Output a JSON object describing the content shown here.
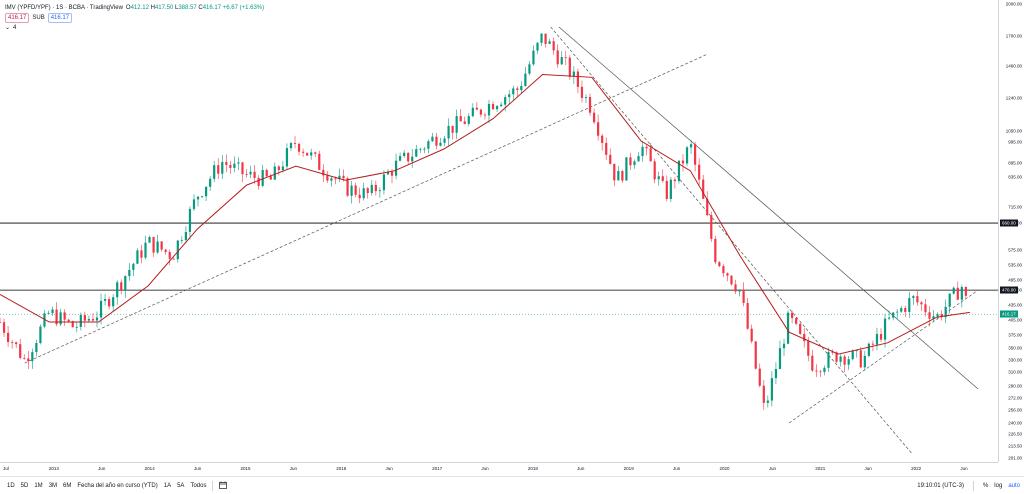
{
  "legend": {
    "symbol": "IMV (YPFD/YPF) · 1S · BCBA · TradingView",
    "ohlc": {
      "o_label": "O",
      "o": "412.12",
      "h_label": "H",
      "h": "417.50",
      "l_label": "L",
      "l": "388.57",
      "c_label": "C",
      "c": "416.17",
      "change": "+6.67 (+1.63%)"
    },
    "ma_value_1": "416.17",
    "ma_label": "SUB",
    "ma_value_2": "416.17",
    "collapse_count": "4"
  },
  "colors": {
    "up": "#089981",
    "down": "#f23645",
    "ma": "#b71c1c",
    "accent": "#2962ff",
    "trendline": "#555555",
    "level": "#000000"
  },
  "price_axis": {
    "labels": [
      "2000.00",
      "1700.00",
      "1460.00",
      "1240.00",
      "1050.00",
      "995.00",
      "895.00",
      "835.00",
      "715.00",
      "660.00",
      "575.00",
      "535.00",
      "495.00",
      "470.00",
      "435.00",
      "405.00",
      "375.00",
      "350.00",
      "330.00",
      "310.00",
      "290.00",
      "272.00",
      "256.00",
      "240.00",
      "226.50",
      "213.50",
      "201.00"
    ],
    "level_tags": [
      "660.00",
      "470.00",
      "416.17"
    ]
  },
  "time_axis": {
    "labels": [
      "Jul",
      "2013",
      "Jun",
      "2014",
      "Jun",
      "2015",
      "Jun",
      "2016",
      "Jun",
      "2017",
      "Jun",
      "2018",
      "Jun",
      "2019",
      "Jun",
      "2020",
      "Jun",
      "2021",
      "Jun",
      "2022",
      "Jun"
    ]
  },
  "toolbar": {
    "ranges": [
      "1D",
      "5D",
      "1M",
      "3M",
      "6M",
      "Fecha del año en curso (YTD)",
      "1A",
      "5A",
      "Todos"
    ],
    "time": "19:10:01 (UTC-3)",
    "percent": "%",
    "log": "log",
    "auto": "auto"
  },
  "chart_data": {
    "type": "candlestick",
    "timeframe": "1S",
    "x_range": [
      "2012-07",
      "2022-06"
    ],
    "y_scale": "log",
    "ylim": [
      201,
      2000
    ],
    "horizontal_levels": [
      660,
      470
    ],
    "last_price": 416.17,
    "series": [
      {
        "kind": "candles",
        "x": [
          "2012-07",
          "2012-10",
          "2013-01",
          "2013-04",
          "2013-07",
          "2013-10",
          "2014-01",
          "2014-04",
          "2014-07",
          "2014-10",
          "2015-01",
          "2015-04",
          "2015-07",
          "2015-10",
          "2016-01",
          "2016-04",
          "2016-07",
          "2016-10",
          "2017-01",
          "2017-04",
          "2017-07",
          "2017-10",
          "2018-01",
          "2018-04",
          "2018-07",
          "2018-10",
          "2019-01",
          "2019-04",
          "2019-07",
          "2019-10",
          "2020-01",
          "2020-04",
          "2020-07",
          "2020-10",
          "2021-01",
          "2021-04",
          "2021-07",
          "2021-10",
          "2022-01",
          "2022-04",
          "2022-05"
        ],
        "values": [
          400,
          330,
          420,
          390,
          420,
          500,
          600,
          560,
          760,
          900,
          840,
          820,
          1000,
          880,
          790,
          760,
          880,
          960,
          1050,
          1120,
          1220,
          1300,
          1700,
          1450,
          1180,
          820,
          980,
          760,
          980,
          560,
          470,
          255,
          410,
          320,
          340,
          330,
          400,
          450,
          410,
          480,
          416
        ]
      },
      {
        "kind": "moving-average",
        "x": [
          "2012-07",
          "2013-01",
          "2013-07",
          "2014-01",
          "2014-07",
          "2015-01",
          "2015-07",
          "2016-01",
          "2016-07",
          "2017-01",
          "2017-07",
          "2018-01",
          "2018-07",
          "2019-01",
          "2019-07",
          "2020-01",
          "2020-07",
          "2021-01",
          "2021-07",
          "2022-01",
          "2022-05"
        ],
        "values": [
          460,
          400,
          400,
          480,
          640,
          800,
          880,
          820,
          860,
          960,
          1120,
          1400,
          1380,
          1000,
          860,
          560,
          380,
          340,
          360,
          410,
          420
        ]
      }
    ],
    "trendlines": [
      {
        "style": "dashed",
        "from": [
          "2012-10",
          325
        ],
        "to": [
          "2019-09",
          1550
        ]
      },
      {
        "style": "solid",
        "from": [
          "2018-03",
          1780
        ],
        "to": [
          "2022-06",
          285
        ]
      },
      {
        "style": "dashed",
        "from": [
          "2018-02",
          1780
        ],
        "to": [
          "2021-10",
          205
        ]
      },
      {
        "style": "dashed",
        "from": [
          "2020-07",
          240
        ],
        "to": [
          "2022-06",
          470
        ]
      }
    ]
  }
}
